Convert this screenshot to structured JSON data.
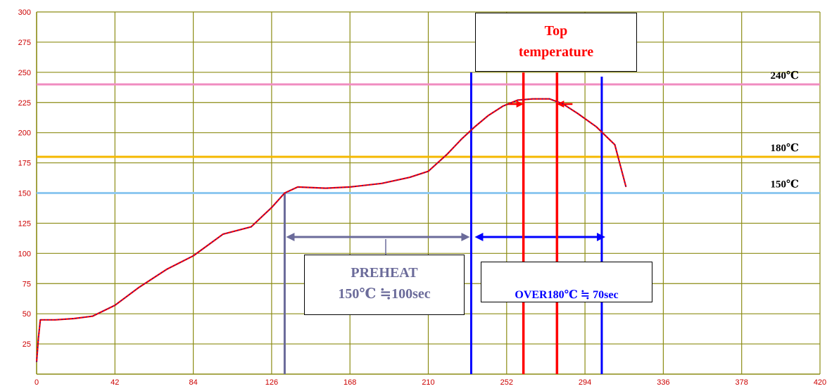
{
  "chart_data": {
    "type": "line",
    "title": "",
    "xlabel": "",
    "ylabel": "",
    "xlim": [
      0,
      420
    ],
    "ylim": [
      0,
      300
    ],
    "x_ticks": [
      "0",
      "42",
      "84",
      "126",
      "168",
      "210",
      "252",
      "294",
      "336",
      "378",
      "420"
    ],
    "y_ticks": [
      "25",
      "50",
      "75",
      "100",
      "125",
      "150",
      "175",
      "200",
      "225",
      "250",
      "275",
      "300"
    ],
    "series": [
      {
        "name": "",
        "color": "#ff0000",
        "x": [
          0,
          1,
          2,
          10,
          20,
          30,
          42,
          55,
          70,
          84,
          100,
          115,
          126,
          133,
          140,
          155,
          168,
          185,
          200,
          210,
          220,
          228,
          235,
          242,
          250,
          258,
          266,
          275,
          282,
          290,
          300,
          310,
          316
        ],
        "y": [
          10,
          30,
          45,
          45,
          46,
          48,
          57,
          72,
          87,
          98,
          116,
          122,
          138,
          150,
          155,
          154,
          155,
          158,
          163,
          168,
          182,
          195,
          205,
          214,
          222,
          227,
          228,
          228,
          224,
          216,
          205,
          190,
          155
        ]
      }
    ],
    "reference_lines": [
      {
        "value": 240,
        "label": "240℃",
        "color": "#f08cc0"
      },
      {
        "value": 180,
        "label": "180℃",
        "color": "#f5b800"
      },
      {
        "value": 150,
        "label": "150℃",
        "color": "#8ec8f0"
      }
    ],
    "preheat_marker": {
      "x_start": 133,
      "x_end": 233,
      "color": "#6b6b9a"
    },
    "over180_marker": {
      "x_start": 233,
      "x_end": 303,
      "color": "#0000ff"
    },
    "peak_marker": {
      "x_start": 261,
      "x_end": 279,
      "color": "#ff0000"
    },
    "annotations": {
      "top_line1": "Top",
      "top_line2": "temperature",
      "preheat_line1": "PREHEAT",
      "preheat_line2": "150℃ ≒100sec",
      "over180": "OVER180℃ ≒ 70sec"
    },
    "grid": true
  }
}
